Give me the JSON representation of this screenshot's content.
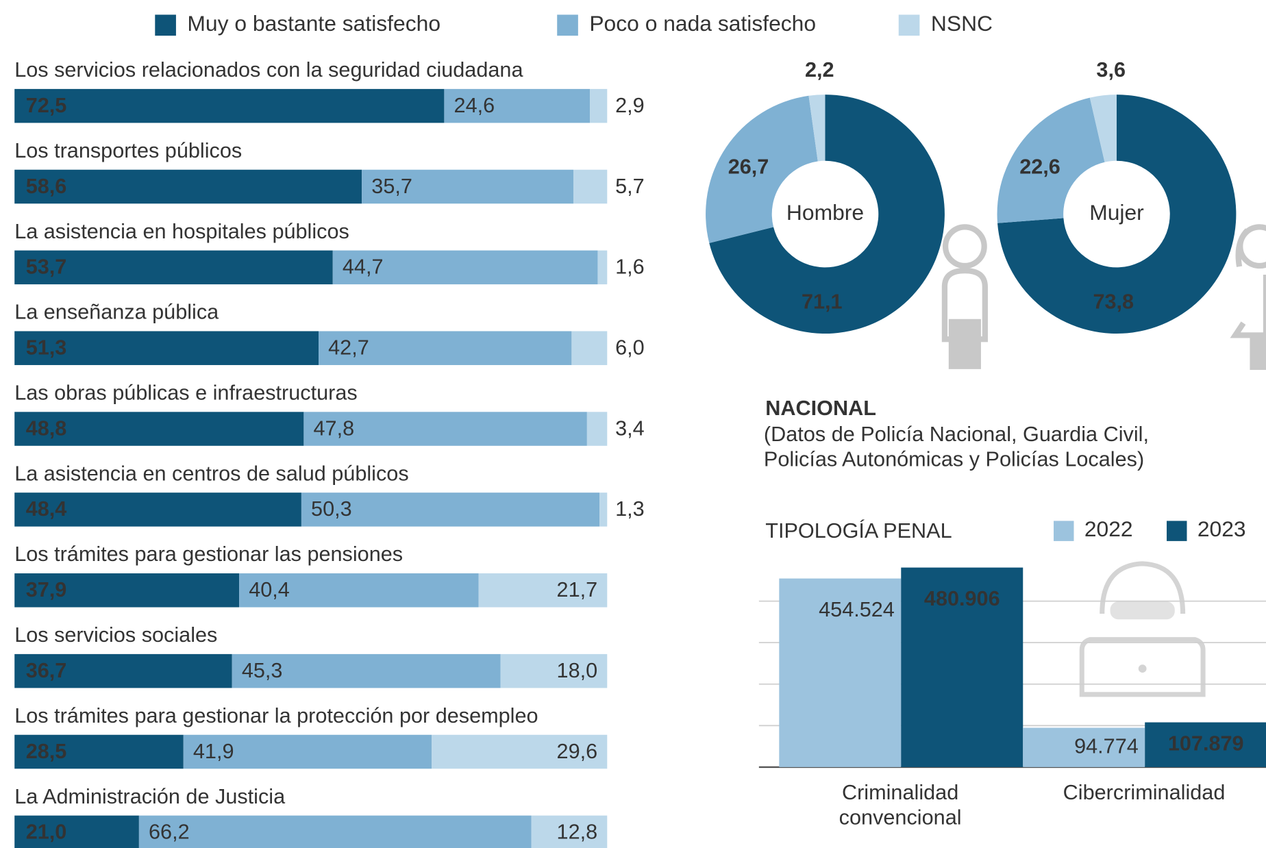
{
  "chart_data": [
    {
      "type": "stacked-bar",
      "categories": [
        "Los servicios relacionados con la seguridad ciudadana",
        "Los transportes públicos",
        "La asistencia en hospitales públicos",
        "La enseñanza pública",
        "Las obras públicas e infraestructuras",
        "La asistencia en centros de salud públicos",
        "Los trámites para gestionar las pensiones",
        "Los servicios sociales",
        "Los trámites para gestionar la protección por desempleo",
        "La Administración de Justicia"
      ],
      "series": [
        {
          "name": "Muy o bastante satisfecho",
          "color": "#0e5478",
          "values": [
            72.5,
            58.6,
            53.7,
            51.3,
            48.8,
            48.4,
            37.9,
            36.7,
            28.5,
            21.0
          ],
          "value_labels": [
            "72,5",
            "58,6",
            "53,7",
            "51,3",
            "48,8",
            "48,4",
            "37,9",
            "36,7",
            "28,5",
            "21,0"
          ]
        },
        {
          "name": "Poco o nada satisfecho",
          "color": "#7fb1d3",
          "values": [
            24.6,
            35.7,
            44.7,
            42.7,
            47.8,
            50.3,
            40.4,
            45.3,
            41.9,
            66.2
          ],
          "value_labels": [
            "24,6",
            "35,7",
            "44,7",
            "42,7",
            "47,8",
            "50,3",
            "40,4",
            "45,3",
            "41,9",
            "66,2"
          ]
        },
        {
          "name": "NSNC",
          "color": "#bcd8ea",
          "values": [
            2.9,
            5.7,
            1.6,
            6.0,
            3.4,
            1.3,
            21.7,
            18.0,
            29.6,
            12.8
          ],
          "value_labels": [
            "2,9",
            "5,7",
            "1,6",
            "6,0",
            "3,4",
            "1,3",
            "21,7",
            "18,0",
            "29,6",
            "12,8"
          ]
        }
      ]
    },
    {
      "type": "donut",
      "center_label": "Hombre",
      "colors": [
        "#0e5478",
        "#7fb1d3",
        "#bcd8ea"
      ],
      "values": [
        71.1,
        26.7,
        2.2
      ],
      "value_labels": [
        "71,1",
        "26,7",
        "2,2"
      ]
    },
    {
      "type": "donut",
      "center_label": "Mujer",
      "colors": [
        "#0e5478",
        "#7fb1d3",
        "#bcd8ea"
      ],
      "values": [
        73.8,
        22.6,
        3.6
      ],
      "value_labels": [
        "73,8",
        "22,6",
        "3,6"
      ]
    },
    {
      "type": "bar",
      "title": "NACIONAL",
      "subtitle": "(Datos de Policía Nacional, Guardia Civil, Policías Autonómicas y Policías Locales)",
      "axis_title": "TIPOLOGÍA PENAL",
      "categories": [
        "Criminalidad convencional",
        "Cibercriminalidad"
      ],
      "series": [
        {
          "name": "2022",
          "color": "#9cc3de",
          "values": [
            454524,
            94774
          ],
          "value_labels": [
            "454.524",
            "94.774"
          ]
        },
        {
          "name": "2023",
          "color": "#0e5478",
          "values": [
            480906,
            107879
          ],
          "value_labels": [
            "480.906",
            "107.879"
          ]
        }
      ],
      "ylim": [
        0,
        500000
      ],
      "yticks": [
        0,
        100000,
        200000,
        300000,
        400000
      ],
      "grid": true
    }
  ]
}
